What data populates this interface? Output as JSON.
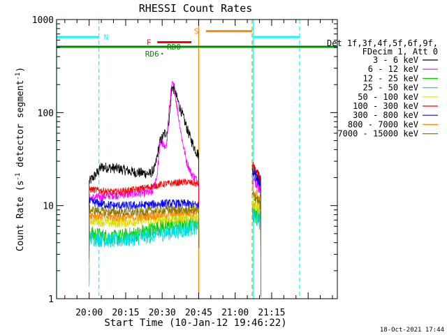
{
  "chart_data": {
    "type": "line",
    "title": "RHESSI Count Rates",
    "xlabel": "Start Time (10-Jan-12 19:46:22)",
    "ylabel_main": "Count Rate (s",
    "ylabel_sup": "-1",
    "ylabel_tail": " detector segment",
    "ylabel_sup2": "-1",
    "ylabel_close": ")",
    "y_scale": "log",
    "ylim": [
      1,
      1000
    ],
    "xlim_minutes": [
      -13.4,
      102
    ],
    "y_ticks": [
      {
        "v": 1,
        "label": "1"
      },
      {
        "v": 10,
        "label": "10"
      },
      {
        "v": 100,
        "label": "100"
      },
      {
        "v": 1000,
        "label": "1000"
      }
    ],
    "x_ticks": [
      {
        "m": 0,
        "label": "20:00"
      },
      {
        "m": 15,
        "label": "20:15"
      },
      {
        "m": 30,
        "label": "20:30"
      },
      {
        "m": 45,
        "label": "20:45"
      },
      {
        "m": 60,
        "label": "21:00"
      },
      {
        "m": 75,
        "label": "21:15"
      }
    ],
    "legend_header": [
      "Det 1f,3f,4f,5f,6f,9f,",
      "FDecim 1, Att 0"
    ],
    "series": [
      {
        "name": "3 - 6 keV",
        "color": "#000000",
        "base": 18,
        "noise": 0.06,
        "profile": [
          [
            0,
            18
          ],
          [
            3,
            22
          ],
          [
            5,
            26
          ],
          [
            12,
            25
          ],
          [
            18,
            23
          ],
          [
            25,
            22
          ],
          [
            27,
            25
          ],
          [
            29,
            48
          ],
          [
            31,
            60
          ],
          [
            32,
            62
          ],
          [
            33,
            90
          ],
          [
            34,
            190
          ],
          [
            35,
            175
          ],
          [
            37,
            120
          ],
          [
            40,
            70
          ],
          [
            42,
            50
          ],
          [
            44,
            38
          ],
          [
            45,
            35
          ]
        ],
        "seg2": [
          [
            67,
            26
          ],
          [
            69,
            22
          ],
          [
            70.5,
            18
          ]
        ]
      },
      {
        "name": "6 - 12 keV",
        "color": "#ff00ff",
        "base": 12,
        "noise": 0.05,
        "profile": [
          [
            0,
            12
          ],
          [
            10,
            13
          ],
          [
            20,
            13.5
          ],
          [
            26,
            14
          ],
          [
            28,
            22
          ],
          [
            29,
            45
          ],
          [
            30,
            48
          ],
          [
            31,
            40
          ],
          [
            32,
            50
          ],
          [
            33,
            120
          ],
          [
            34,
            200
          ],
          [
            35,
            190
          ],
          [
            36,
            120
          ],
          [
            38,
            55
          ],
          [
            40,
            30
          ],
          [
            42,
            22
          ],
          [
            45,
            18
          ]
        ],
        "seg2": [
          [
            67,
            20
          ],
          [
            69,
            17
          ],
          [
            70.5,
            14
          ]
        ]
      },
      {
        "name": "12 - 25 keV",
        "color": "#00cc00",
        "base": 5,
        "noise": 0.09,
        "profile": [
          [
            0,
            5
          ],
          [
            10,
            4.5
          ],
          [
            20,
            5
          ],
          [
            30,
            6
          ],
          [
            40,
            6.5
          ],
          [
            45,
            6.5
          ]
        ],
        "seg2": [
          [
            67,
            9
          ],
          [
            69,
            8
          ],
          [
            70.5,
            7
          ]
        ]
      },
      {
        "name": "25 - 50 keV",
        "color": "#00dddd",
        "base": 4.5,
        "noise": 0.09,
        "profile": [
          [
            0,
            4.5
          ],
          [
            10,
            4.2
          ],
          [
            20,
            4.5
          ],
          [
            30,
            5
          ],
          [
            40,
            5.5
          ],
          [
            45,
            6
          ]
        ],
        "seg2": [
          [
            67,
            8
          ],
          [
            69,
            7.5
          ],
          [
            70.5,
            7
          ]
        ]
      },
      {
        "name": "50 - 100 keV",
        "color": "#dddd00",
        "base": 7,
        "noise": 0.06,
        "profile": [
          [
            0,
            7
          ],
          [
            10,
            6.5
          ],
          [
            20,
            6.8
          ],
          [
            30,
            7.2
          ],
          [
            40,
            7.5
          ],
          [
            45,
            7.5
          ]
        ],
        "seg2": [
          [
            67,
            11
          ],
          [
            69,
            10
          ],
          [
            70.5,
            9
          ]
        ]
      },
      {
        "name": "100 - 300 keV",
        "color": "#ff0000",
        "base": 15,
        "noise": 0.04,
        "profile": [
          [
            0,
            15
          ],
          [
            10,
            14
          ],
          [
            20,
            15
          ],
          [
            30,
            17
          ],
          [
            40,
            18
          ],
          [
            45,
            17
          ]
        ],
        "seg2": [
          [
            67,
            28
          ],
          [
            69,
            22
          ],
          [
            70.5,
            18
          ]
        ]
      },
      {
        "name": "300 - 800 keV",
        "color": "#0000ff",
        "base": 11,
        "noise": 0.05,
        "profile": [
          [
            0,
            11
          ],
          [
            10,
            10
          ],
          [
            20,
            10
          ],
          [
            30,
            10.5
          ],
          [
            40,
            10.5
          ],
          [
            45,
            10
          ]
        ],
        "seg2": [
          [
            67,
            24
          ],
          [
            69,
            20
          ],
          [
            70.5,
            16
          ]
        ]
      },
      {
        "name": "800 - 7000 keV",
        "color": "#ff8800",
        "base": 8,
        "noise": 0.05,
        "profile": [
          [
            0,
            8
          ],
          [
            10,
            7.5
          ],
          [
            20,
            7.5
          ],
          [
            30,
            8
          ],
          [
            40,
            8.5
          ],
          [
            45,
            8.5
          ]
        ],
        "seg2": [
          [
            67,
            15
          ],
          [
            69,
            13
          ],
          [
            70.5,
            11
          ]
        ]
      },
      {
        "name": "7000 - 15000 keV",
        "color": "#8b7700",
        "base": 9,
        "noise": 0.05,
        "profile": [
          [
            0,
            9
          ],
          [
            10,
            8.5
          ],
          [
            20,
            8.5
          ],
          [
            30,
            9
          ],
          [
            40,
            9
          ],
          [
            45,
            9
          ]
        ],
        "seg2": [
          [
            67,
            13
          ],
          [
            69,
            12
          ],
          [
            70.5,
            10
          ]
        ]
      }
    ],
    "flag_bars": [
      {
        "label": "N",
        "color": "#00ffff",
        "y": 650,
        "segments": [
          [
            -13.4,
            4
          ],
          [
            67.5,
            86.5
          ]
        ],
        "label_at": 6
      },
      {
        "label": "S",
        "color": "#ff8800",
        "y": 750,
        "segments": [
          [
            48,
            67
          ]
        ],
        "label_at": 45
      },
      {
        "label": "F",
        "color": "#ff0000",
        "y": 570,
        "segments": [
          [
            28,
            42
          ]
        ],
        "label_at": 25.5
      },
      {
        "label": "RD0",
        "color": "#008800",
        "y": 510,
        "segments": [
          [
            -13.4,
            102
          ]
        ],
        "label_at": 32,
        "dot": 30
      },
      {
        "label": "RD6",
        "color": "#008800",
        "y": 430,
        "segments": [],
        "label_at": 23,
        "dot": 30
      }
    ],
    "vlines": [
      {
        "m": -13.4,
        "color": "#00ffff",
        "dash": false
      },
      {
        "m": 4,
        "color": "#00ffff",
        "dash": true
      },
      {
        "m": 45,
        "color": "#ff8800",
        "dash": false
      },
      {
        "m": 67,
        "color": "#ff8800",
        "dash": true
      },
      {
        "m": 67.5,
        "color": "#00ffff",
        "dash": false
      },
      {
        "m": 86.5,
        "color": "#00ffff",
        "dash": true
      }
    ],
    "timestamp": "18-Oct-2021 17:44"
  }
}
